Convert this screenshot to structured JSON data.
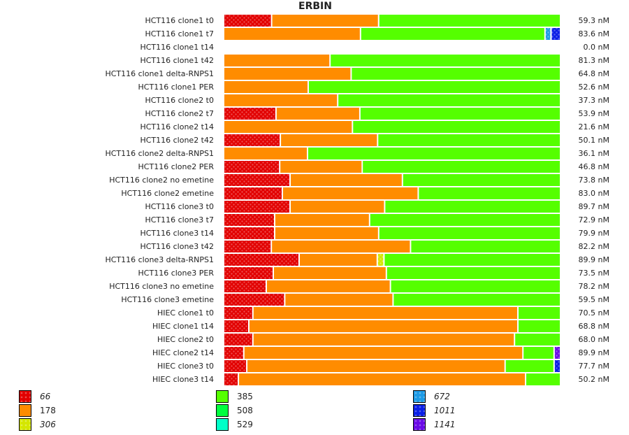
{
  "chart_data": {
    "type": "bar",
    "orientation": "horizontal",
    "stacked": true,
    "normalized": true,
    "title": "ERBIN",
    "xlabel": "",
    "ylabel": "",
    "value_unit": "nM",
    "legend_position": "bottom",
    "isoforms": [
      {
        "name": "66",
        "color": "#e20000",
        "pattern": true,
        "italic": true
      },
      {
        "name": "178",
        "color": "#ff8c00",
        "pattern": false,
        "italic": false
      },
      {
        "name": "306",
        "color": "#d4e600",
        "pattern": true,
        "italic": true
      },
      {
        "name": "385",
        "color": "#55ff00",
        "pattern": false,
        "italic": false
      },
      {
        "name": "508",
        "color": "#00ff40",
        "pattern": false,
        "italic": false
      },
      {
        "name": "529",
        "color": "#00ffc8",
        "pattern": false,
        "italic": false
      },
      {
        "name": "672",
        "color": "#1e9be6",
        "pattern": true,
        "italic": true
      },
      {
        "name": "1011",
        "color": "#0a1ee6",
        "pattern": true,
        "italic": true
      },
      {
        "name": "1141",
        "color": "#6a0ae6",
        "pattern": true,
        "italic": true
      }
    ],
    "categories": [
      "HCT116 clone1 t0",
      "HCT116 clone1 t7",
      "HCT116 clone1 t14",
      "HCT116 clone1 t42",
      "HCT116 clone1 delta-RNPS1",
      "HCT116 clone1 PER",
      "HCT116 clone2 t0",
      "HCT116 clone2 t7",
      "HCT116 clone2 t14",
      "HCT116 clone2 t42",
      "HCT116 clone2 delta-RNPS1",
      "HCT116 clone2 PER",
      "HCT116 clone2 no emetine",
      "HCT116 clone2 emetine",
      "HCT116 clone3 t0",
      "HCT116 clone3 t7",
      "HCT116 clone3 t14",
      "HCT116 clone3 t42",
      "HCT116 clone3 delta-RNPS1",
      "HCT116 clone3 PER",
      "HCT116 clone3 no emetine",
      "HCT116 clone3 emetine",
      "HIEC clone1 t0",
      "HIEC clone1 t14",
      "HIEC clone2 t0",
      "HIEC clone2 t14",
      "HIEC clone3 t0",
      "HIEC clone3 t14"
    ],
    "totals": [
      "59.3 nM",
      "83.6 nM",
      "0.0 nM",
      "81.3 nM",
      "64.8 nM",
      "52.6 nM",
      "37.3 nM",
      "53.9 nM",
      "21.6 nM",
      "50.1 nM",
      "36.1 nM",
      "46.8 nM",
      "73.8 nM",
      "83.0 nM",
      "89.7 nM",
      "72.9 nM",
      "79.9 nM",
      "82.2 nM",
      "89.9 nM",
      "73.5 nM",
      "78.2 nM",
      "59.5 nM",
      "70.5 nM",
      "68.8 nM",
      "68.0 nM",
      "89.9 nM",
      "77.7 nM",
      "50.2 nM"
    ],
    "series": [
      {
        "name": "66",
        "values": [
          0.143,
          0,
          0,
          0,
          0,
          0,
          0,
          0.156,
          0,
          0.169,
          0,
          0.167,
          0.198,
          0.175,
          0.198,
          0.152,
          0.152,
          0.142,
          0.225,
          0.148,
          0.127,
          0.182,
          0.087,
          0.075,
          0.087,
          0.06,
          0.069,
          0.044
        ]
      },
      {
        "name": "178",
        "values": [
          0.319,
          0.408,
          0,
          0.317,
          0.38,
          0.252,
          0.34,
          0.25,
          0.384,
          0.29,
          0.25,
          0.246,
          0.335,
          0.405,
          0.282,
          0.283,
          0.31,
          0.415,
          0.233,
          0.337,
          0.37,
          0.323,
          0.79,
          0.802,
          0.78,
          0.832,
          0.77,
          0.856
        ]
      },
      {
        "name": "306",
        "values": [
          0,
          0,
          0,
          0,
          0,
          0,
          0,
          0,
          0,
          0,
          0,
          0,
          0,
          0,
          0,
          0,
          0,
          0,
          0.02,
          0,
          0,
          0,
          0,
          0,
          0,
          0,
          0,
          0
        ]
      },
      {
        "name": "385",
        "values": [
          0.538,
          0.55,
          0,
          0.683,
          0.62,
          0.748,
          0.66,
          0.594,
          0.616,
          0.541,
          0.75,
          0.587,
          0.467,
          0.42,
          0.52,
          0.565,
          0.538,
          0.443,
          0.522,
          0.515,
          0.503,
          0.495,
          0.123,
          0.123,
          0.133,
          0.093,
          0.146,
          0.1
        ]
      },
      {
        "name": "508",
        "values": [
          0,
          0,
          0,
          0,
          0,
          0,
          0,
          0,
          0,
          0,
          0,
          0,
          0,
          0,
          0,
          0,
          0,
          0,
          0,
          0,
          0,
          0,
          0,
          0,
          0,
          0,
          0,
          0
        ]
      },
      {
        "name": "529",
        "values": [
          0,
          0,
          0,
          0,
          0,
          0,
          0,
          0,
          0,
          0,
          0,
          0,
          0,
          0,
          0,
          0,
          0,
          0,
          0,
          0,
          0,
          0,
          0,
          0,
          0,
          0,
          0,
          0
        ]
      },
      {
        "name": "672",
        "values": [
          0,
          0.018,
          0,
          0,
          0,
          0,
          0,
          0,
          0,
          0,
          0,
          0,
          0,
          0,
          0,
          0,
          0,
          0,
          0,
          0,
          0,
          0,
          0,
          0,
          0,
          0,
          0,
          0
        ]
      },
      {
        "name": "1011",
        "values": [
          0,
          0.024,
          0,
          0,
          0,
          0,
          0,
          0,
          0,
          0,
          0,
          0,
          0,
          0,
          0,
          0,
          0,
          0,
          0,
          0,
          0,
          0,
          0,
          0,
          0,
          0,
          0.015,
          0
        ]
      },
      {
        "name": "1141",
        "values": [
          0,
          0,
          0,
          0,
          0,
          0,
          0,
          0,
          0,
          0,
          0,
          0,
          0,
          0,
          0,
          0,
          0,
          0,
          0,
          0,
          0,
          0,
          0,
          0,
          0,
          0.015,
          0,
          0
        ]
      }
    ]
  }
}
